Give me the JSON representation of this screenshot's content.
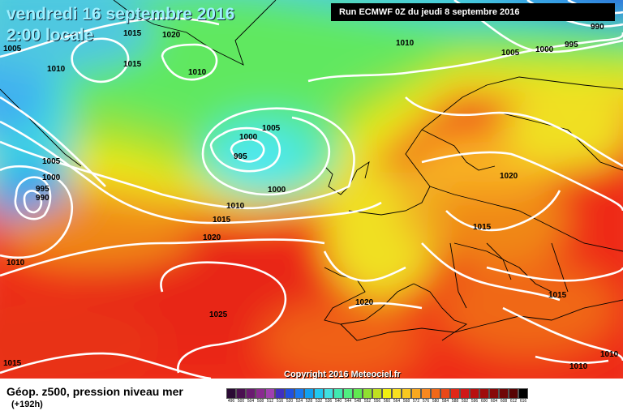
{
  "map": {
    "title_date": "vendredi 16 septembre 2016",
    "title_time": "2:00 locale",
    "run_info": "Run ECMWF 0Z du jeudi 8 septembre 2016",
    "copyright": "Copyright 2016 Meteociel.fr",
    "caption": "Géop. z500, pression niveau mer",
    "forecast_hour": "(+192h)",
    "pressure_labels": [
      "1005",
      "1010",
      "1015",
      "1020",
      "1015",
      "1010",
      "990",
      "1010",
      "995",
      "1005",
      "1000",
      "1005",
      "1000",
      "995",
      "1000",
      "1010",
      "1015",
      "1020",
      "1005",
      "1000",
      "995",
      "990",
      "1010",
      "1025",
      "1020",
      "1015",
      "1020",
      "1015",
      "1015",
      "1010",
      "1010",
      "1015"
    ],
    "colour_scale": {
      "labels": [
        "496",
        "500",
        "504",
        "508",
        "512",
        "516",
        "520",
        "524",
        "528",
        "532",
        "536",
        "540",
        "544",
        "548",
        "552",
        "556",
        "560",
        "564",
        "568",
        "572",
        "576",
        "580",
        "584",
        "588",
        "592",
        "596",
        "600",
        "604",
        "608",
        "612",
        "616"
      ],
      "colors": [
        "#2a0a33",
        "#4a1050",
        "#6a1a70",
        "#8a2a90",
        "#a040b0",
        "#4030c0",
        "#2050e0",
        "#1878f0",
        "#10a0f0",
        "#20c8f0",
        "#40e0e0",
        "#40e8b0",
        "#50ee80",
        "#60e850",
        "#90e030",
        "#c0e020",
        "#f0f010",
        "#f8e020",
        "#f8c820",
        "#f8a820",
        "#f88820",
        "#f06818",
        "#e84818",
        "#e02818",
        "#d01818",
        "#b81010",
        "#a00c0c",
        "#880808",
        "#700606",
        "#580404",
        "#000000"
      ]
    }
  }
}
